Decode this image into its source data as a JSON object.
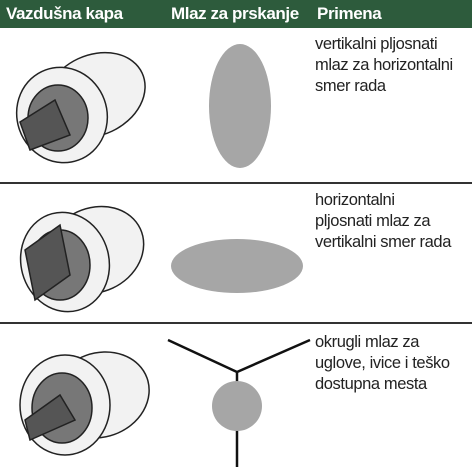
{
  "table": {
    "columns": [
      "Vazdušna kapa",
      "Mlaz za prskanje",
      "Primena"
    ],
    "rows": [
      {
        "application": [
          "vertikalni pljosnati",
          "mlaz za horizontalni",
          "smer rada"
        ]
      },
      {
        "application": [
          "horizontalni",
          "pljosnati mlaz za",
          "vertikalni smer rada"
        ]
      },
      {
        "application": [
          "okrugli mlaz za",
          "uglove, ivice i teško",
          "dostupna mesta"
        ]
      }
    ]
  }
}
